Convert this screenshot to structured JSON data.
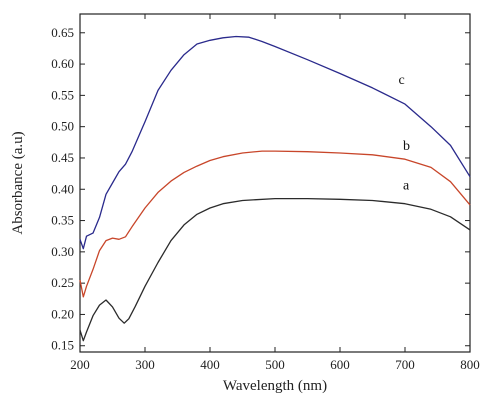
{
  "chart_data": {
    "type": "line",
    "xlabel": "Wavelength (nm)",
    "ylabel": "Absorbance (a.u)",
    "xlim": [
      200,
      800
    ],
    "ylim": [
      0.14,
      0.68
    ],
    "xticks": [
      200,
      300,
      400,
      500,
      600,
      700,
      800
    ],
    "yticks": [
      0.15,
      0.2,
      0.25,
      0.3,
      0.35,
      0.4,
      0.45,
      0.5,
      0.55,
      0.6,
      0.65
    ],
    "grid": false,
    "series": [
      {
        "name": "a",
        "color": "#2b2b2b",
        "x": [
          200,
          205,
          210,
          220,
          230,
          240,
          250,
          260,
          268,
          275,
          285,
          300,
          320,
          340,
          360,
          380,
          400,
          420,
          450,
          500,
          550,
          600,
          650,
          700,
          740,
          770,
          800
        ],
        "y": [
          0.175,
          0.158,
          0.172,
          0.198,
          0.215,
          0.223,
          0.212,
          0.194,
          0.186,
          0.193,
          0.213,
          0.245,
          0.283,
          0.318,
          0.343,
          0.36,
          0.37,
          0.377,
          0.382,
          0.385,
          0.385,
          0.384,
          0.382,
          0.377,
          0.368,
          0.356,
          0.335
        ]
      },
      {
        "name": "b",
        "color": "#c8462a",
        "x": [
          200,
          205,
          210,
          220,
          230,
          240,
          250,
          260,
          270,
          280,
          300,
          320,
          340,
          360,
          380,
          400,
          420,
          450,
          480,
          500,
          550,
          600,
          650,
          700,
          740,
          770,
          800
        ],
        "y": [
          0.255,
          0.228,
          0.245,
          0.272,
          0.302,
          0.318,
          0.322,
          0.32,
          0.324,
          0.34,
          0.37,
          0.395,
          0.413,
          0.427,
          0.437,
          0.446,
          0.452,
          0.458,
          0.461,
          0.461,
          0.46,
          0.458,
          0.455,
          0.448,
          0.435,
          0.412,
          0.375
        ]
      },
      {
        "name": "c",
        "color": "#2a2a8c",
        "x": [
          200,
          205,
          210,
          220,
          230,
          240,
          250,
          260,
          270,
          280,
          300,
          320,
          340,
          360,
          380,
          400,
          420,
          440,
          460,
          480,
          500,
          550,
          600,
          650,
          700,
          740,
          770,
          800
        ],
        "y": [
          0.32,
          0.305,
          0.325,
          0.33,
          0.355,
          0.392,
          0.41,
          0.428,
          0.44,
          0.46,
          0.508,
          0.558,
          0.59,
          0.615,
          0.632,
          0.638,
          0.642,
          0.644,
          0.643,
          0.636,
          0.628,
          0.607,
          0.585,
          0.562,
          0.536,
          0.5,
          0.47,
          0.42
        ]
      }
    ],
    "annotations": [
      {
        "text": "c",
        "x": 690,
        "y": 0.568
      },
      {
        "text": "b",
        "x": 697,
        "y": 0.463
      },
      {
        "text": "a",
        "x": 697,
        "y": 0.4
      }
    ]
  }
}
